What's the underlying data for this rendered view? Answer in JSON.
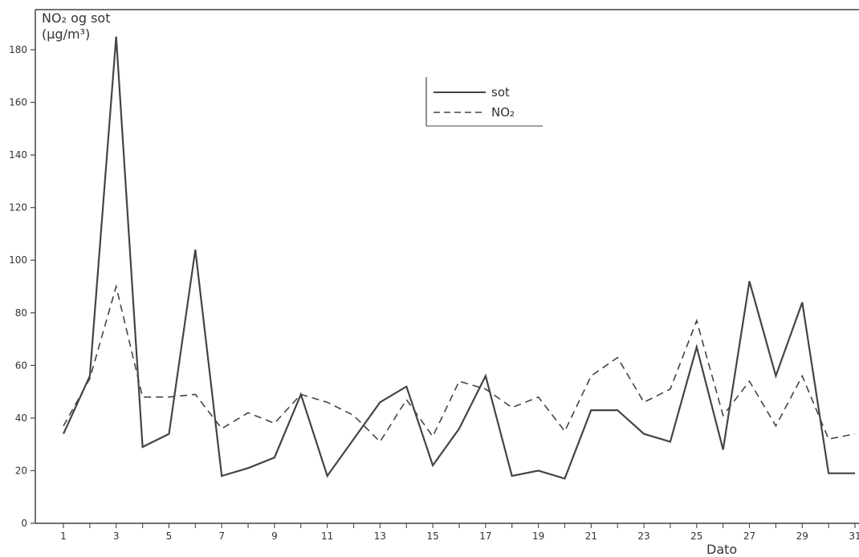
{
  "chart_data": {
    "type": "line",
    "title": "",
    "ylabel_line1": "NO₂ og sot",
    "ylabel_line2": "(µg/m³)",
    "xlabel": "Dato",
    "ylim": [
      0,
      190
    ],
    "y_ticks": [
      0,
      20,
      40,
      60,
      80,
      100,
      120,
      140,
      160,
      180
    ],
    "xlim": [
      1,
      31
    ],
    "x_tick_labels": [
      1,
      3,
      5,
      7,
      9,
      11,
      13,
      15,
      17,
      19,
      21,
      23,
      25,
      27,
      29,
      31
    ],
    "x_minor_ticks": true,
    "grid": false,
    "legend_position": "top-center",
    "series": [
      {
        "name": "sot",
        "style": "solid",
        "color": "#444444",
        "x": [
          1,
          2,
          3,
          4,
          5,
          6,
          7,
          8,
          9,
          10,
          11,
          12,
          13,
          14,
          15,
          16,
          17,
          18,
          19,
          20,
          21,
          22,
          23,
          24,
          25,
          26,
          27,
          28,
          29,
          30,
          31
        ],
        "values": [
          34,
          56,
          185,
          29,
          34,
          104,
          18,
          21,
          25,
          49,
          18,
          32,
          46,
          52,
          22,
          36,
          56,
          18,
          20,
          17,
          43,
          43,
          34,
          31,
          67,
          28,
          92,
          56,
          84,
          19,
          19
        ]
      },
      {
        "name": "NO₂",
        "style": "dashed",
        "color": "#444444",
        "x": [
          1,
          2,
          3,
          4,
          5,
          6,
          7,
          8,
          9,
          10,
          11,
          12,
          13,
          14,
          15,
          16,
          17,
          18,
          19,
          20,
          21,
          22,
          23,
          24,
          25,
          26,
          27,
          28,
          29,
          30,
          31
        ],
        "values": [
          37,
          55,
          90,
          48,
          48,
          49,
          36,
          42,
          38,
          49,
          46,
          41,
          31,
          47,
          33,
          54,
          51,
          44,
          48,
          35,
          56,
          63,
          46,
          51,
          77,
          41,
          54,
          37,
          56,
          32,
          34
        ]
      }
    ]
  }
}
